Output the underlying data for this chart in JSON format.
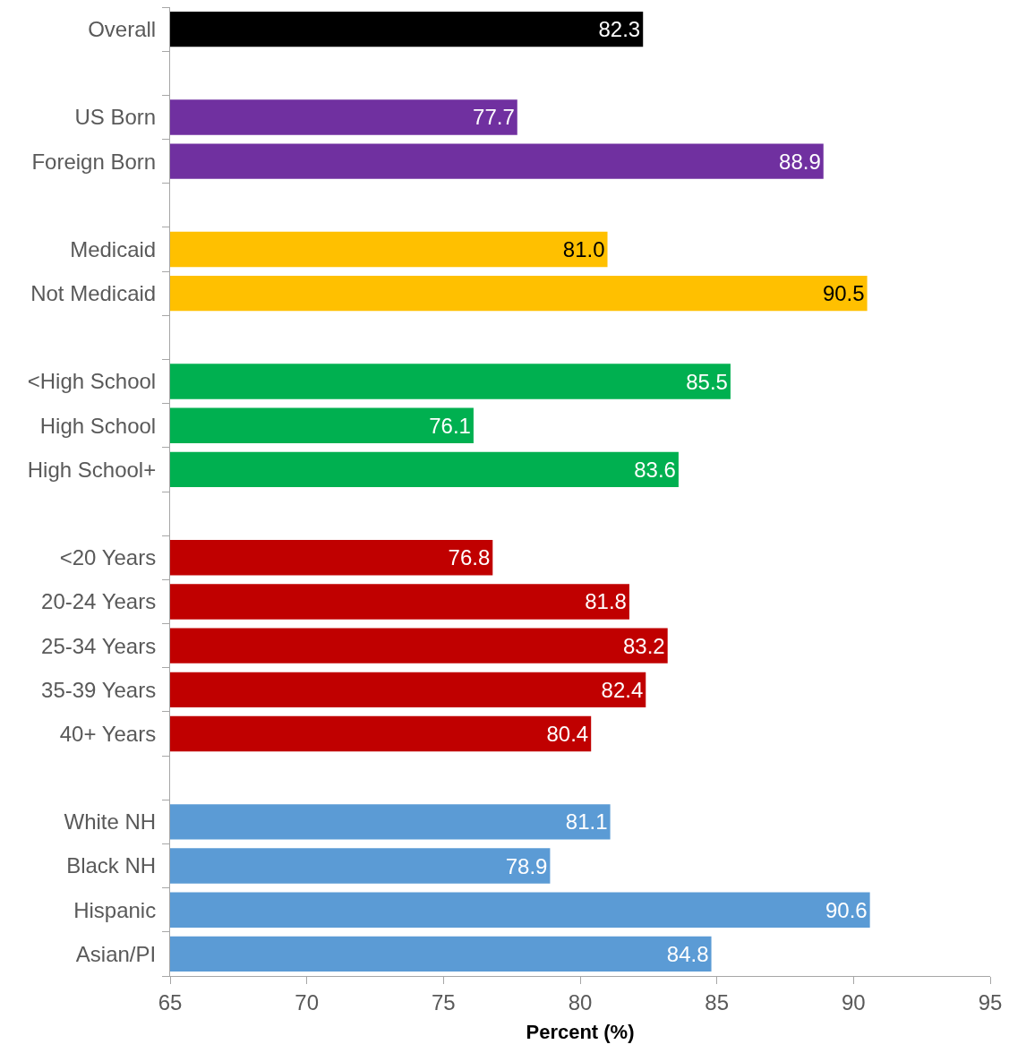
{
  "chart_data": {
    "type": "bar",
    "orientation": "horizontal",
    "xlabel": "Percent (%)",
    "categories": [
      "Overall",
      null,
      "US Born",
      "Foreign Born",
      null,
      "Medicaid",
      "Not Medicaid",
      null,
      "<High School",
      "High School",
      "High School+",
      null,
      "<20 Years",
      "20-24 Years",
      "25-34 Years",
      "35-39 Years",
      "40+ Years",
      null,
      "White NH",
      "Black NH",
      "Hispanic",
      "Asian/PI"
    ],
    "values": [
      82.3,
      null,
      77.7,
      88.9,
      null,
      81.0,
      90.5,
      null,
      85.5,
      76.1,
      83.6,
      null,
      76.8,
      81.8,
      83.2,
      82.4,
      80.4,
      null,
      81.1,
      78.9,
      90.6,
      84.8
    ],
    "colors": [
      "#000000",
      null,
      "#7030a0",
      "#7030a0",
      null,
      "#ffc000",
      "#ffc000",
      null,
      "#00b050",
      "#00b050",
      "#00b050",
      null,
      "#c00000",
      "#c00000",
      "#c00000",
      "#c00000",
      "#c00000",
      null,
      "#5b9bd5",
      "#5b9bd5",
      "#5b9bd5",
      "#5b9bd5"
    ],
    "value_labels": [
      "82.3",
      null,
      "77.7",
      "88.9",
      null,
      "81.0",
      "90.5",
      null,
      "85.5",
      "76.1",
      "83.6",
      null,
      "76.8",
      "81.8",
      "83.2",
      "82.4",
      "80.4",
      null,
      "81.1",
      "78.9",
      "90.6",
      "84.8"
    ],
    "xlim": [
      65,
      95
    ],
    "xticks": [
      65,
      70,
      75,
      80,
      85,
      90,
      95
    ]
  }
}
